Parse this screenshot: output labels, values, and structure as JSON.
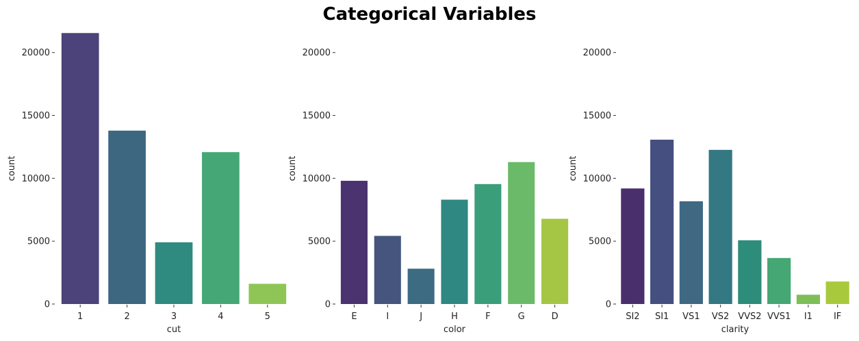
{
  "figure": {
    "title": "Categorical Variables"
  },
  "chart_data": [
    {
      "type": "bar",
      "xlabel": "cut",
      "ylabel": "count",
      "ylim": [
        0,
        22000
      ],
      "yticks": [
        0,
        5000,
        10000,
        15000,
        20000
      ],
      "categories": [
        "1",
        "2",
        "3",
        "4",
        "5"
      ],
      "values": [
        21550,
        13790,
        4910,
        12080,
        1610
      ],
      "colors": [
        "#4b4379",
        "#3d6681",
        "#2f8a80",
        "#46a776",
        "#8fc556"
      ]
    },
    {
      "type": "bar",
      "xlabel": "color",
      "ylabel": "count",
      "ylim": [
        0,
        22000
      ],
      "yticks": [
        0,
        5000,
        10000,
        15000,
        20000
      ],
      "categories": [
        "E",
        "I",
        "J",
        "H",
        "F",
        "G",
        "D"
      ],
      "values": [
        9800,
        5420,
        2810,
        8300,
        9540,
        11290,
        6780
      ],
      "colors": [
        "#4a336f",
        "#45557e",
        "#3d6b82",
        "#2f8882",
        "#3b9e7a",
        "#6bba6a",
        "#a5c544"
      ]
    },
    {
      "type": "bar",
      "xlabel": "clarity",
      "ylabel": "count",
      "ylim": [
        0,
        22000
      ],
      "yticks": [
        0,
        5000,
        10000,
        15000,
        20000
      ],
      "categories": [
        "SI2",
        "SI1",
        "VS1",
        "VS2",
        "VVS2",
        "VVS1",
        "I1",
        "IF"
      ],
      "values": [
        9190,
        13070,
        8170,
        12260,
        5070,
        3660,
        740,
        1790
      ],
      "colors": [
        "#4a2f6d",
        "#454f80",
        "#3f6983",
        "#337883",
        "#2e8c7a",
        "#45a774",
        "#7ebd58",
        "#a9c93c"
      ]
    }
  ]
}
